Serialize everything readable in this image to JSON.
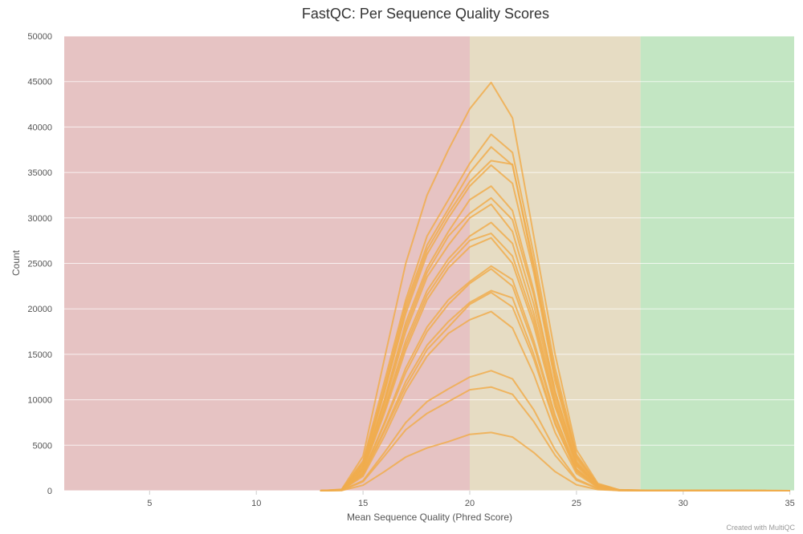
{
  "chart_data": {
    "type": "line",
    "title": "FastQC: Per Sequence Quality Scores",
    "xlabel": "Mean Sequence Quality (Phred Score)",
    "ylabel": "Count",
    "xlim": [
      1,
      35.2
    ],
    "ylim": [
      0,
      50000
    ],
    "x_ticks": [
      5,
      10,
      15,
      20,
      25,
      30,
      35
    ],
    "y_ticks": [
      0,
      5000,
      10000,
      15000,
      20000,
      25000,
      30000,
      35000,
      40000,
      45000,
      50000
    ],
    "grid": true,
    "legend": "none",
    "bands": [
      {
        "from": 1,
        "to": 20,
        "color": "#e6c3c3"
      },
      {
        "from": 20,
        "to": 28,
        "color": "#e6dcc3"
      },
      {
        "from": 28,
        "to": 35.2,
        "color": "#c3e6c3"
      }
    ],
    "line_color": "#f0ad4e",
    "x": [
      13,
      14,
      15,
      16,
      17,
      18,
      19,
      20,
      21,
      22,
      23,
      24,
      25,
      26,
      27,
      28,
      29,
      30,
      31,
      32,
      33,
      34,
      35
    ],
    "series": [
      {
        "values": [
          0,
          150,
          3800,
          14500,
          25000,
          32500,
          37500,
          42000,
          44900,
          41000,
          28000,
          15000,
          4500,
          800,
          100,
          50,
          30,
          20,
          10,
          10,
          10,
          5,
          0
        ]
      },
      {
        "values": [
          0,
          120,
          3300,
          12000,
          21000,
          28000,
          32000,
          36000,
          39200,
          37200,
          26000,
          13500,
          4000,
          700,
          90,
          40,
          25,
          15,
          10,
          10,
          10,
          5,
          0
        ]
      },
      {
        "values": [
          0,
          110,
          3100,
          11500,
          20500,
          27000,
          31000,
          35000,
          37800,
          35800,
          25000,
          12800,
          3800,
          680,
          85,
          40,
          25,
          15,
          10,
          10,
          10,
          5,
          0
        ]
      },
      {
        "values": [
          0,
          100,
          3000,
          11000,
          20000,
          26500,
          30500,
          34000,
          36300,
          35900,
          24500,
          12500,
          3700,
          650,
          80,
          35,
          20,
          15,
          10,
          10,
          8,
          4,
          0
        ]
      },
      {
        "values": [
          0,
          100,
          2900,
          10800,
          19500,
          26000,
          30000,
          33500,
          35800,
          33800,
          24000,
          12000,
          3500,
          620,
          80,
          35,
          20,
          15,
          10,
          10,
          8,
          4,
          0
        ]
      },
      {
        "values": [
          0,
          90,
          2700,
          10000,
          18500,
          24500,
          28500,
          32000,
          33500,
          30800,
          22000,
          11000,
          3200,
          580,
          75,
          30,
          20,
          12,
          10,
          8,
          6,
          4,
          0
        ]
      },
      {
        "values": [
          0,
          90,
          2600,
          9800,
          18000,
          24000,
          28000,
          30500,
          32200,
          29800,
          21500,
          10800,
          3100,
          560,
          70,
          30,
          20,
          12,
          10,
          8,
          6,
          4,
          0
        ]
      },
      {
        "values": [
          0,
          85,
          2500,
          9500,
          17500,
          23500,
          27000,
          30000,
          31500,
          28500,
          20500,
          10300,
          3000,
          540,
          70,
          30,
          18,
          12,
          10,
          8,
          6,
          3,
          0
        ]
      },
      {
        "values": [
          0,
          80,
          2400,
          9000,
          16500,
          22000,
          25500,
          28000,
          29500,
          27200,
          19500,
          9800,
          2900,
          520,
          65,
          28,
          18,
          12,
          8,
          8,
          6,
          3,
          0
        ]
      },
      {
        "values": [
          0,
          80,
          2300,
          8800,
          16000,
          21500,
          25000,
          27500,
          28300,
          25800,
          18800,
          9500,
          2800,
          500,
          62,
          28,
          16,
          10,
          8,
          6,
          5,
          3,
          0
        ]
      },
      {
        "values": [
          0,
          75,
          2200,
          8500,
          15500,
          21000,
          24500,
          26800,
          27800,
          25000,
          18200,
          9200,
          2700,
          490,
          60,
          26,
          15,
          10,
          8,
          6,
          5,
          3,
          0
        ]
      },
      {
        "values": [
          0,
          70,
          2000,
          7500,
          13500,
          18000,
          21000,
          23000,
          24700,
          23200,
          16500,
          8300,
          2400,
          430,
          55,
          24,
          14,
          10,
          8,
          6,
          5,
          3,
          0
        ]
      },
      {
        "values": [
          0,
          70,
          1950,
          7300,
          13000,
          17500,
          20500,
          22800,
          24400,
          22500,
          16000,
          8000,
          2350,
          420,
          54,
          24,
          14,
          10,
          8,
          6,
          5,
          3,
          0
        ]
      },
      {
        "values": [
          0,
          60,
          1800,
          6700,
          12000,
          16000,
          18600,
          20700,
          22000,
          21200,
          15000,
          7500,
          2200,
          400,
          50,
          22,
          12,
          8,
          6,
          5,
          4,
          2,
          0
        ]
      },
      {
        "values": [
          0,
          60,
          1750,
          6500,
          11500,
          15500,
          18000,
          20500,
          21800,
          20200,
          14500,
          7300,
          2100,
          390,
          48,
          22,
          12,
          8,
          6,
          5,
          4,
          2,
          0
        ]
      },
      {
        "values": [
          0,
          55,
          1600,
          6000,
          11000,
          14800,
          17300,
          18800,
          19700,
          17900,
          12800,
          6400,
          1900,
          350,
          44,
          20,
          11,
          7,
          6,
          5,
          4,
          2,
          0
        ]
      },
      {
        "values": [
          0,
          40,
          1100,
          4200,
          7500,
          9800,
          11200,
          12500,
          13200,
          12300,
          8900,
          4500,
          1300,
          250,
          30,
          14,
          8,
          6,
          5,
          4,
          3,
          2,
          0
        ]
      },
      {
        "values": [
          0,
          35,
          1000,
          3800,
          6700,
          8500,
          9800,
          11100,
          11400,
          10600,
          7600,
          3900,
          1150,
          220,
          28,
          12,
          7,
          5,
          4,
          3,
          2,
          1,
          0
        ]
      },
      {
        "values": [
          0,
          20,
          600,
          2100,
          3700,
          4700,
          5400,
          6200,
          6400,
          5900,
          4200,
          2100,
          650,
          120,
          16,
          8,
          5,
          4,
          3,
          2,
          2,
          1,
          0
        ]
      }
    ]
  },
  "footer": {
    "credit": "Created with MultiQC"
  }
}
